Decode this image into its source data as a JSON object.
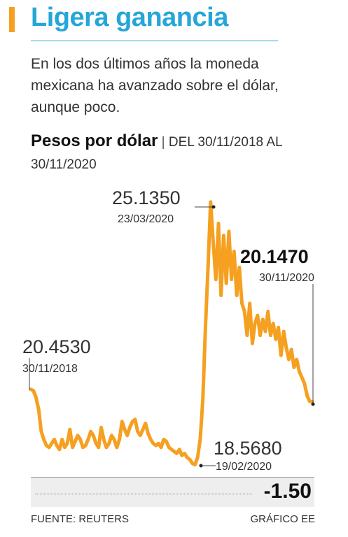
{
  "header": {
    "title": "Ligera ganancia",
    "subtitle": "En los dos últimos años la moneda mexicana ha avanzado sobre el dólar, aunque poco.",
    "units_bold": "Pesos por dólar",
    "units_sep": "|",
    "units_range": "DEL 30/11/2018 AL 30/11/2020"
  },
  "colors": {
    "accent": "#f5a020",
    "title": "#25a6d9",
    "line": "#f5a020"
  },
  "chart_data": {
    "type": "line",
    "title": "Pesos por dólar",
    "ylim": [
      18.3,
      25.5
    ],
    "x_range": [
      "30/11/2018",
      "30/11/2020"
    ],
    "series": [
      {
        "values": [
          20.453,
          20.42,
          20.25,
          19.95,
          19.4,
          19.2,
          19.05,
          19.0,
          19.1,
          19.2,
          19.05,
          18.95,
          19.2,
          19.0,
          19.1,
          19.45,
          19.0,
          19.15,
          19.3,
          19.2,
          19.0,
          19.05,
          19.2,
          19.4,
          19.3,
          19.1,
          19.0,
          19.5,
          19.2,
          19.0,
          19.1,
          19.3,
          19.2,
          19.0,
          19.2,
          19.65,
          19.45,
          19.3,
          19.5,
          19.65,
          19.7,
          19.4,
          19.3,
          19.45,
          19.6,
          19.35,
          19.2,
          19.1,
          19.05,
          19.1,
          19.0,
          19.2,
          19.15,
          19.0,
          18.95,
          18.9,
          18.85,
          18.95,
          18.8,
          18.85,
          18.75,
          18.7,
          18.6,
          18.57,
          18.75,
          19.2,
          20.2,
          22.0,
          23.5,
          25.135,
          24.1,
          23.2,
          24.6,
          22.8,
          24.3,
          23.1,
          24.4,
          23.2,
          23.9,
          22.8,
          23.5,
          22.6,
          22.4,
          21.8,
          22.6,
          21.6,
          22.1,
          22.3,
          21.8,
          22.2,
          21.9,
          22.4,
          21.8,
          22.1,
          21.7,
          22.0,
          21.3,
          21.9,
          21.5,
          21.2,
          21.45,
          21.0,
          21.2,
          20.9,
          20.75,
          20.6,
          20.3,
          20.15,
          20.147
        ],
        "start_date": "30/11/2018",
        "end_date": "30/11/2020"
      }
    ],
    "annotations": [
      {
        "value": "20.4530",
        "date": "30/11/2018",
        "type": "start"
      },
      {
        "value": "25.1350",
        "date": "23/03/2020",
        "type": "max"
      },
      {
        "value": "18.5680",
        "date": "19/02/2020",
        "type": "min"
      },
      {
        "value": "20.1470",
        "date": "30/11/2020",
        "type": "end"
      }
    ],
    "difference": "-1.50"
  },
  "footer": {
    "source": "FUENTE: REUTERS",
    "credit": "GRÁFICO EE"
  }
}
